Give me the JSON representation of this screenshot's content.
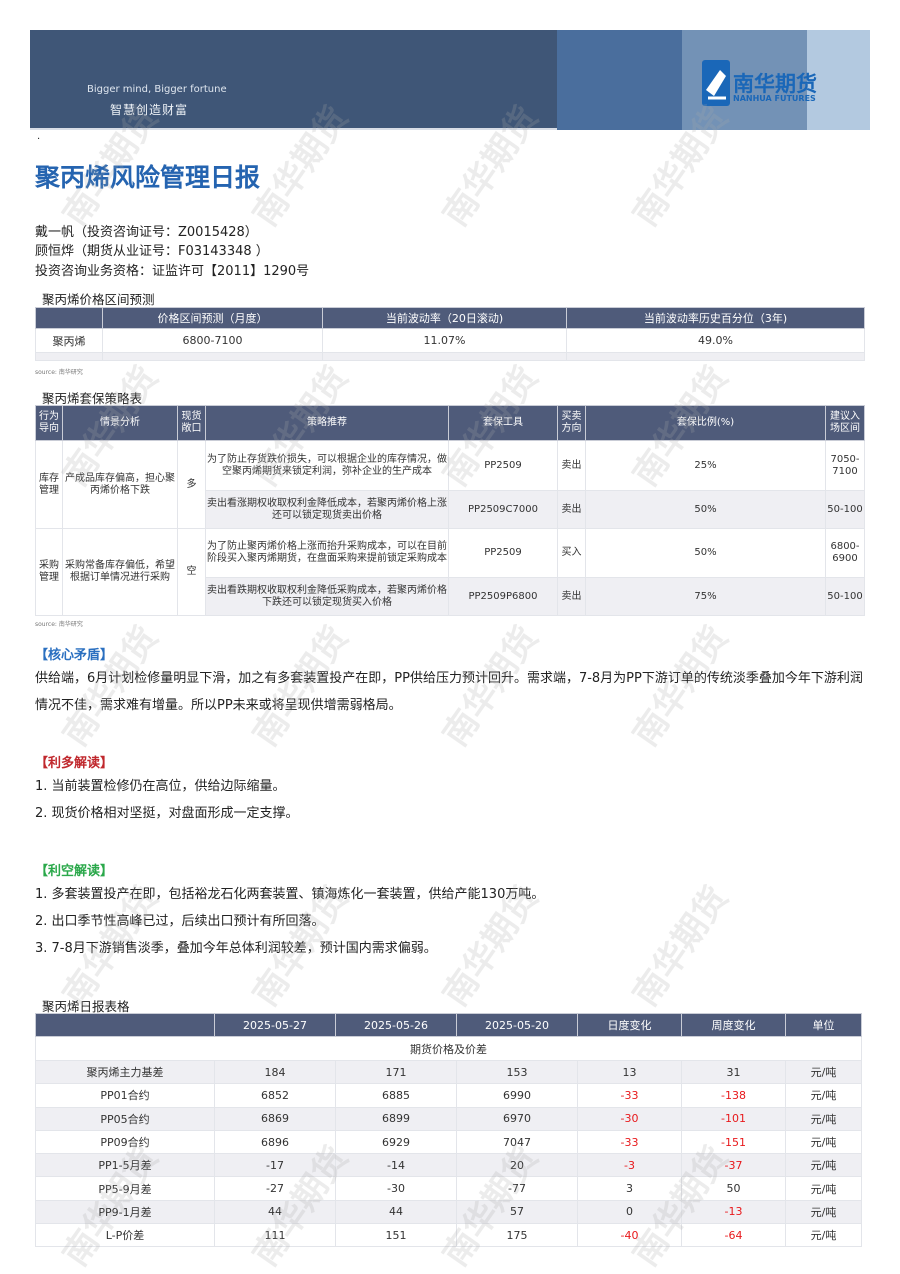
{
  "banner": {
    "slogan_en": "Bigger mind, Bigger fortune",
    "slogan_cn": "智慧创造财富",
    "logo_cn": "南华期货",
    "logo_en": "NANHUA FUTURES",
    "colors": [
      "#3f5677",
      "#4a6e9d",
      "#7392b6",
      "#b3c9e0"
    ]
  },
  "watermark": "南华期货",
  "dot": "·",
  "title": "聚丙烯风险管理日报",
  "authors": [
    "戴一帆（投资咨询证号：Z0015428）",
    "顾恒烨（期货从业证号：F03143348 ）",
    "投资咨询业务资格：证监许可【2011】1290号"
  ],
  "price_forecast": {
    "title": "聚丙烯价格区间预测",
    "headers": [
      "",
      "价格区间预测（月度）",
      "当前波动率（20日滚动)",
      "当前波动率历史百分位（3年)"
    ],
    "row": [
      "聚丙烯",
      "6800-7100",
      "11.07%",
      "49.0%"
    ],
    "source": "source:  南华研究"
  },
  "hedge": {
    "title": "聚丙烯套保策略表",
    "headers": [
      "行为导向",
      "情景分析",
      "现货敞口",
      "策略推荐",
      "套保工具",
      "买卖方向",
      "套保比例(%)",
      "建议入场区间"
    ],
    "groups": [
      {
        "behavior": "库存管理",
        "scenario": "产成品库存偏高，担心聚丙烯价格下跌",
        "exposure": "多",
        "rows": [
          {
            "strategy": "为了防止存货跌价损失，可以根据企业的库存情况，做空聚丙烯期货来锁定利润，弥补企业的生产成本",
            "tool": "PP2509",
            "direction": "卖出",
            "ratio": "25%",
            "range": "7050-7100"
          },
          {
            "strategy": "卖出看涨期权收取权利金降低成本，若聚丙烯价格上涨还可以锁定现货卖出价格",
            "tool": "PP2509C7000",
            "direction": "卖出",
            "ratio": "50%",
            "range": "50-100"
          }
        ]
      },
      {
        "behavior": "采购管理",
        "scenario": "采购常备库存偏低，希望根据订单情况进行采购",
        "exposure": "空",
        "rows": [
          {
            "strategy": "为了防止聚丙烯价格上涨而抬升采购成本，可以在目前阶段买入聚丙烯期货，在盘面采购来提前锁定采购成本",
            "tool": "PP2509",
            "direction": "买入",
            "ratio": "50%",
            "range": "6800-6900"
          },
          {
            "strategy": "卖出看跌期权收取权利金降低采购成本，若聚丙烯价格下跌还可以锁定现货买入价格",
            "tool": "PP2509P6800",
            "direction": "卖出",
            "ratio": "75%",
            "range": "50-100"
          }
        ]
      }
    ],
    "source": "source:  南华研究"
  },
  "core": {
    "heading": "【核心矛盾】",
    "color": "#2a6fc0",
    "text": "供给端，6月计划检修量明显下滑，加之有多套装置投产在即，PP供给压力预计回升。需求端，7-8月为PP下游订单的传统淡季叠加今年下游利润情况不佳，需求难有增量。所以PP未来或将呈现供增需弱格局。"
  },
  "bullish": {
    "heading": "【利多解读】",
    "color": "#c0282d",
    "items": [
      "1. 当前装置检修仍在高位，供给边际缩量。",
      "2. 现货价格相对坚挺，对盘面形成一定支撑。"
    ]
  },
  "bearish": {
    "heading": "【利空解读】",
    "color": "#2aa84a",
    "items": [
      "1. 多套装置投产在即，包括裕龙石化两套装置、镇海炼化一套装置，供给产能130万吨。",
      "2. 出口季节性高峰已过，后续出口预计有所回落。",
      "3. 7-8月下游销售淡季，叠加今年总体利润较差，预计国内需求偏弱。"
    ]
  },
  "daily": {
    "title": "聚丙烯日报表格",
    "headers": [
      "",
      "2025-05-27",
      "2025-05-26",
      "2025-05-20",
      "日度变化",
      "周度变化",
      "单位"
    ],
    "section": "期货价格及价差",
    "rows": [
      [
        "聚丙烯主力基差",
        "184",
        "171",
        "153",
        "13",
        "31",
        "元/吨"
      ],
      [
        "PP01合约",
        "6852",
        "6885",
        "6990",
        "-33",
        "-138",
        "元/吨"
      ],
      [
        "PP05合约",
        "6869",
        "6899",
        "6970",
        "-30",
        "-101",
        "元/吨"
      ],
      [
        "PP09合约",
        "6896",
        "6929",
        "7047",
        "-33",
        "-151",
        "元/吨"
      ],
      [
        "PP1-5月差",
        "-17",
        "-14",
        "20",
        "-3",
        "-37",
        "元/吨"
      ],
      [
        "PP5-9月差",
        "-27",
        "-30",
        "-77",
        "3",
        "50",
        "元/吨"
      ],
      [
        "PP9-1月差",
        "44",
        "44",
        "57",
        "0",
        "-13",
        "元/吨"
      ],
      [
        "L-P价差",
        "111",
        "151",
        "175",
        "-40",
        "-64",
        "元/吨"
      ]
    ],
    "negative_color": "#e8191c"
  }
}
